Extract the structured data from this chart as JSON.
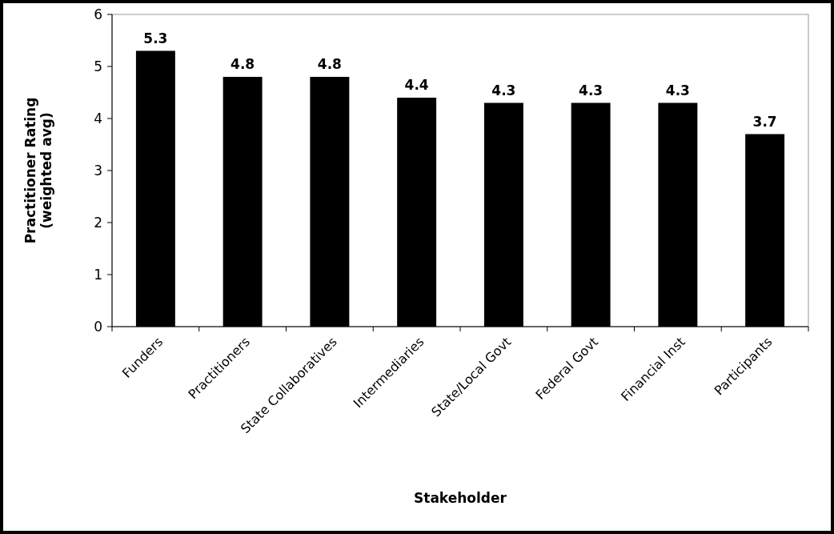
{
  "chart_data": {
    "type": "bar",
    "xlabel": "Stakeholder",
    "ylabel": "Practitioner Rating\n(weighted avg)",
    "categories": [
      "Funders",
      "Practitioners",
      "State Collaboratives",
      "Intermediaries",
      "State/Local Govt",
      "Federal Govt",
      "Financial Inst",
      "Participants"
    ],
    "values": [
      5.3,
      4.8,
      4.8,
      4.4,
      4.3,
      4.3,
      4.3,
      3.7
    ],
    "color": "#000000",
    "ylim": [
      0,
      6
    ],
    "yticks": [
      0,
      1,
      2,
      3,
      4,
      5,
      6
    ],
    "grid": false,
    "data_labels": true
  }
}
